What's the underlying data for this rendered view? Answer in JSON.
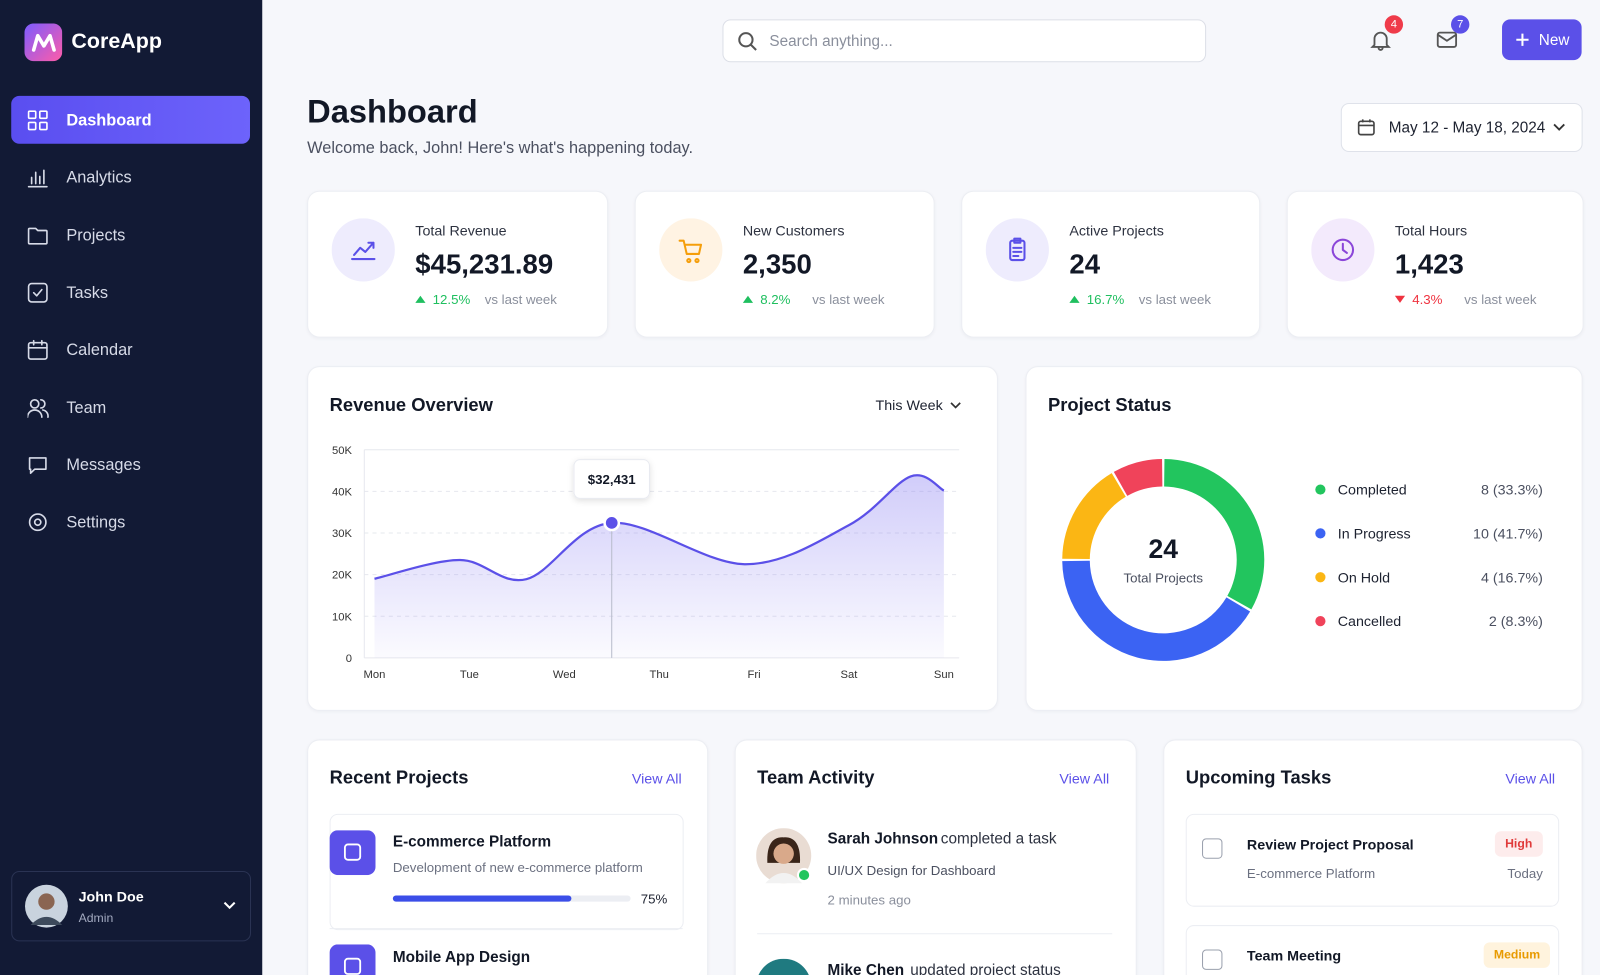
{
  "sidebar": {
    "brand": "CoreApp",
    "nav": [
      "Dashboard",
      "Analytics",
      "Projects",
      "Tasks",
      "Calendar",
      "Team",
      "Messages",
      "Settings"
    ],
    "user": {
      "name": "John Doe",
      "role": "Admin"
    }
  },
  "header": {
    "search_placeholder": "Search anything...",
    "notifications": 4,
    "messages": 7,
    "new_button": "New"
  },
  "page": {
    "title": "Dashboard",
    "subtitle": "Welcome back, John! Here's what's happening today.",
    "date_range": "May 12 - May 18, 2024"
  },
  "stats": [
    {
      "label": "Total Revenue",
      "value": "$45,231.89",
      "change": "12.5%",
      "trend": "up",
      "note": "vs last week"
    },
    {
      "label": "New Customers",
      "value": "2,350",
      "change": "8.2%",
      "trend": "up",
      "note": "vs last week"
    },
    {
      "label": "Active Projects",
      "value": "24",
      "change": "16.7%",
      "trend": "up",
      "note": "vs last week"
    },
    {
      "label": "Total Hours",
      "value": "1,423",
      "change": "4.3%",
      "trend": "down",
      "note": "vs last week"
    }
  ],
  "revenue_chart": {
    "type": "line",
    "title": "Revenue Overview",
    "period": "This Week",
    "x": [
      0,
      0.9,
      1.6,
      2.5,
      3.9,
      5.0,
      5.65,
      6
    ],
    "values": [
      19000,
      23500,
      18900,
      32431,
      22500,
      31900,
      43600,
      40200
    ],
    "value_labels": [
      null,
      null,
      null,
      "$32,431",
      null,
      null,
      null,
      null
    ],
    "xlim": [
      0,
      6
    ],
    "xticks": [
      {
        "value": 0,
        "label": "Mon"
      },
      {
        "value": 1,
        "label": "Tue"
      },
      {
        "value": 2,
        "label": "Wed"
      },
      {
        "value": 3,
        "label": "Thu"
      },
      {
        "value": 4,
        "label": "Fri"
      },
      {
        "value": 5,
        "label": "Sat"
      },
      {
        "value": 6,
        "label": "Sun"
      }
    ],
    "ylim": [
      0,
      50000
    ],
    "yticks": [
      0,
      {
        "value": 10000,
        "label": "10K"
      },
      {
        "value": 20000,
        "label": "20K"
      },
      {
        "value": 30000,
        "label": "30K"
      },
      {
        "value": 40000,
        "label": "40K"
      },
      {
        "value": 50000,
        "label": "50K"
      }
    ],
    "grid": true,
    "color": "#5b50e8"
  },
  "project_chart": {
    "type": "donut",
    "title": "Project Status",
    "center_value": 24,
    "center_label": "Total Projects",
    "categories": [
      "Completed",
      "In Progress",
      "On Hold",
      "Cancelled"
    ],
    "values": [
      8,
      10,
      4,
      2
    ],
    "value_labels": [
      "8 (33.3%)",
      "10 (41.7%)",
      "4 (16.7%)",
      "2 (8.3%)"
    ],
    "colors": [
      "#22c55e",
      "#3b63f3",
      "#fbb614",
      "#f0435a"
    ]
  },
  "recent_projects": {
    "title": "Recent Projects",
    "view_all": "View All",
    "items": [
      {
        "name": "E-commerce Platform",
        "description": "Development of new e-commerce platform",
        "progress": 75,
        "progress_label": "75%"
      },
      {
        "name": "Mobile App Design"
      }
    ]
  },
  "team_activity": {
    "title": "Team Activity",
    "view_all": "View All",
    "items": [
      {
        "name": "Sarah Johnson",
        "action": "completed a task",
        "detail": "UI/UX Design for Dashboard",
        "time": "2 minutes ago"
      },
      {
        "name": "Mike Chen",
        "action": "updated project status"
      }
    ]
  },
  "upcoming_tasks": {
    "title": "Upcoming Tasks",
    "view_all": "View All",
    "items": [
      {
        "title": "Review Project Proposal",
        "project": "E-commerce Platform",
        "priority": "High",
        "due": "Today"
      },
      {
        "title": "Team Meeting",
        "priority": "Medium"
      }
    ]
  }
}
